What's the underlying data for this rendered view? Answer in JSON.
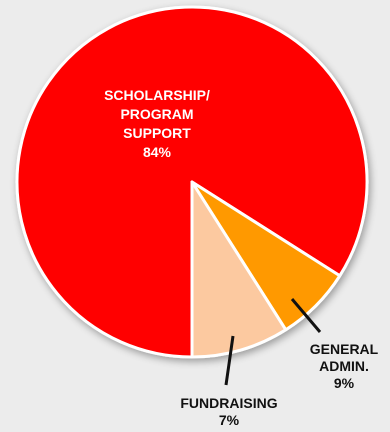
{
  "chart_data": {
    "type": "pie",
    "title": "",
    "slices": [
      {
        "label": "SCHOLARSHIP/ PROGRAM SUPPORT",
        "lines": [
          "SCHOLARSHIP/",
          "PROGRAM",
          "SUPPORT"
        ],
        "value": 84,
        "value_label": "84%",
        "color": "#ff0000",
        "label_color": "#ffffff",
        "leader": false
      },
      {
        "label": "FUNDRAISING",
        "lines": [
          "FUNDRAISING"
        ],
        "value": 7,
        "value_label": "7%",
        "color": "#ff9900",
        "label_color": "#111111",
        "leader": true
      },
      {
        "label": "GENERAL ADMIN.",
        "lines": [
          "GENERAL",
          "ADMIN."
        ],
        "value": 9,
        "value_label": "9%",
        "color": "#fcc9a0",
        "label_color": "#111111",
        "leader": true
      }
    ],
    "start_angle_deg": 0,
    "direction": "clockwise-from-down",
    "slice_border_color": "#ffffff"
  }
}
